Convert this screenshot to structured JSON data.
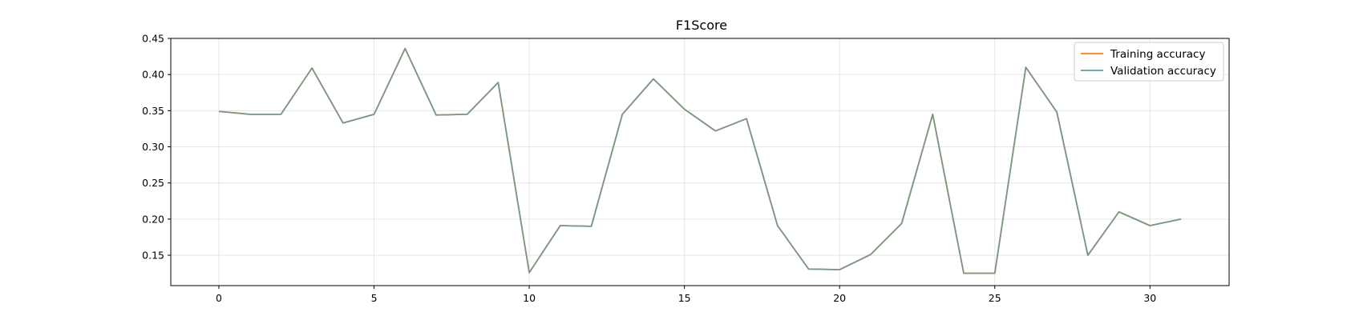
{
  "chart_data": {
    "type": "line",
    "title": "F1Score",
    "xlabel": "",
    "ylabel": "",
    "x": [
      0,
      1,
      2,
      3,
      4,
      5,
      6,
      7,
      8,
      9,
      10,
      11,
      12,
      13,
      14,
      15,
      16,
      17,
      18,
      19,
      20,
      21,
      22,
      23,
      24,
      25,
      26,
      27,
      28,
      29,
      30,
      31
    ],
    "xlim": [
      -1.55,
      32.55
    ],
    "ylim": [
      0.108,
      0.45
    ],
    "x_ticks": [
      0,
      5,
      10,
      15,
      20,
      25,
      30
    ],
    "y_ticks": [
      0.15,
      0.2,
      0.25,
      0.3,
      0.35,
      0.4,
      0.45
    ],
    "y_tick_labels": [
      "0.15",
      "0.20",
      "0.25",
      "0.30",
      "0.35",
      "0.40",
      "0.45"
    ],
    "grid": true,
    "legend_position": "top-right",
    "series": [
      {
        "name": "Training accuracy",
        "color": "#ff7f0e",
        "values": [
          0.349,
          0.345,
          0.345,
          0.409,
          0.333,
          0.345,
          0.436,
          0.344,
          0.345,
          0.389,
          0.126,
          0.191,
          0.19,
          0.345,
          0.394,
          0.352,
          0.322,
          0.339,
          0.191,
          0.131,
          0.13,
          0.151,
          0.194,
          0.345,
          0.125,
          0.125,
          0.41,
          0.348,
          0.15,
          0.21,
          0.191,
          0.2
        ]
      },
      {
        "name": "Validation accuracy",
        "color": "#5f9ea0",
        "values": [
          0.349,
          0.345,
          0.345,
          0.409,
          0.333,
          0.345,
          0.436,
          0.344,
          0.345,
          0.389,
          0.126,
          0.191,
          0.19,
          0.345,
          0.394,
          0.352,
          0.322,
          0.339,
          0.191,
          0.131,
          0.13,
          0.151,
          0.194,
          0.345,
          0.125,
          0.125,
          0.41,
          0.348,
          0.15,
          0.21,
          0.191,
          0.2
        ]
      }
    ]
  }
}
